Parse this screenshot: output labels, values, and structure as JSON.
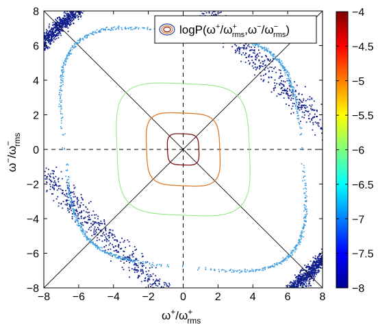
{
  "chart_data": {
    "type": "contour",
    "title": "",
    "xlabel": {
      "base": "ω",
      "sup": "+",
      "slash": "/ω",
      "sub": "rms",
      "sup2": "+"
    },
    "ylabel": {
      "base": "ω",
      "sup": "−",
      "slash": "/ω",
      "sub": "rms",
      "sup2": "−"
    },
    "xlim": [
      -8,
      8
    ],
    "ylim": [
      -8,
      8
    ],
    "xticks": [
      "−8",
      "−6",
      "−4",
      "−2",
      "0",
      "2",
      "4",
      "6",
      "8"
    ],
    "yticks": [
      "8",
      "6",
      "4",
      "2",
      "0",
      "−2",
      "−4",
      "−6",
      "−8"
    ],
    "xtick_values": [
      -8,
      -6,
      -4,
      -2,
      0,
      2,
      4,
      6,
      8
    ],
    "ytick_values": [
      8,
      6,
      4,
      2,
      0,
      -2,
      -4,
      -6,
      -8
    ],
    "legend": {
      "position": "top-right",
      "text_a": "logP(ω",
      "text_sup_a": "+",
      "text_b": "/ω",
      "text_sub_b": "rms",
      "text_sup_b": "+",
      "text_c": ",ω",
      "text_sup_c": "−",
      "text_d": "/ω",
      "text_sub_d": "rms",
      "text_sup_d": "−",
      "text_e": ")"
    },
    "contours": [
      {
        "level": -4,
        "color": "#7f1010",
        "half_width": 0.9
      },
      {
        "level": -5,
        "color": "#dd7a2a",
        "half_width": 2.1
      },
      {
        "level": -6,
        "color": "#99e68a",
        "half_width": 3.8
      },
      {
        "level": -7,
        "color": "#3a9be0",
        "half_width": 6.8
      }
    ],
    "tails_level": -8,
    "tails_color": "#101e8c",
    "colorbar": {
      "min": -8,
      "max": -4,
      "ticks": [
        "−4",
        "−4.5",
        "−5",
        "−5.5",
        "−6",
        "−6.5",
        "−7",
        "−7.5",
        "−8"
      ],
      "tick_values": [
        -4,
        -4.5,
        -5,
        -5.5,
        -6,
        -6.5,
        -7,
        -7.5,
        -8
      ]
    },
    "reference_lines": [
      "x=0 (dashed)",
      "y=0 (dashed)",
      "y=x",
      "y=-x"
    ]
  }
}
